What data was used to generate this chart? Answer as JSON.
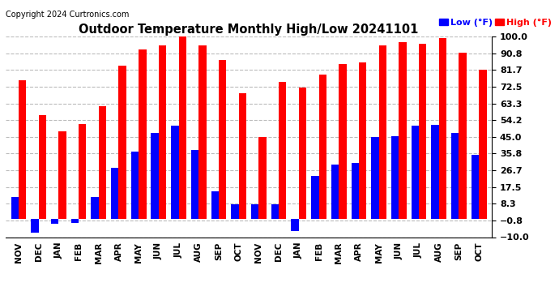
{
  "title": "Outdoor Temperature Monthly High/Low 20241101",
  "copyright": "Copyright 2024 Curtronics.com",
  "legend_low": "Low (°F)",
  "legend_high": "High (°F)",
  "ylim": [
    -10.0,
    100.0
  ],
  "yticks": [
    100.0,
    90.8,
    81.7,
    72.5,
    63.3,
    54.2,
    45.0,
    35.8,
    26.7,
    17.5,
    8.3,
    -0.8,
    -10.0
  ],
  "categories": [
    "NOV",
    "DEC",
    "JAN",
    "FEB",
    "MAR",
    "APR",
    "MAY",
    "JUN",
    "JUL",
    "AUG",
    "SEP",
    "OCT",
    "NOV",
    "DEC",
    "JAN",
    "FEB",
    "MAR",
    "APR",
    "MAY",
    "JUN",
    "JUL",
    "AUG",
    "SEP",
    "OCT"
  ],
  "high_values": [
    76.0,
    57.0,
    48.0,
    52.0,
    62.0,
    84.0,
    93.0,
    95.0,
    100.0,
    95.0,
    87.0,
    69.0,
    45.0,
    75.0,
    72.0,
    79.0,
    85.0,
    86.0,
    95.0,
    97.0,
    96.0,
    99.0,
    91.0,
    82.0
  ],
  "low_values": [
    12.0,
    -7.5,
    -2.5,
    -2.0,
    12.0,
    28.0,
    37.0,
    47.0,
    51.0,
    38.0,
    15.0,
    8.0,
    8.0,
    8.0,
    -6.5,
    23.5,
    30.0,
    30.5,
    45.0,
    45.5,
    51.0,
    51.5,
    47.0,
    35.0
  ],
  "high_color": "#ff0000",
  "low_color": "#0000ff",
  "bg_color": "#ffffff",
  "grid_color": "#bbbbbb",
  "title_color": "#000000",
  "bar_width": 0.38
}
